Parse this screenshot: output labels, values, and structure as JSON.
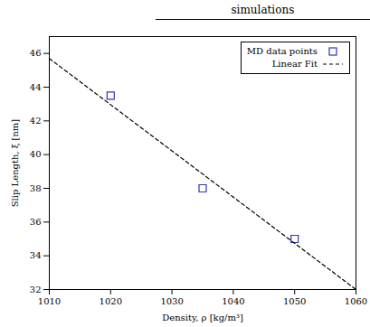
{
  "chart_data": {
    "type": "scatter",
    "annotation": "simulations",
    "xlabel": "Density, ρ [kg/m³]",
    "ylabel": "Slip Length, ξ [nm]",
    "series": [
      {
        "name": "MD data points",
        "type": "scatter",
        "marker": "square",
        "color": "#3333bb",
        "x": [
          1020,
          1035,
          1050
        ],
        "values": [
          43.5,
          38.0,
          35.0
        ]
      },
      {
        "name": "Linear Fit",
        "type": "line",
        "line_style": "dashed",
        "color": "#000000",
        "x": [
          1010,
          1060
        ],
        "values": [
          45.7,
          32.0
        ]
      }
    ],
    "xlim": [
      1010,
      1060
    ],
    "ylim": [
      32,
      47
    ],
    "xticks": [
      1010,
      1020,
      1030,
      1040,
      1050,
      1060
    ],
    "yticks": [
      32,
      34,
      36,
      38,
      40,
      42,
      44,
      46
    ],
    "grid": false,
    "legend": "upper right"
  }
}
